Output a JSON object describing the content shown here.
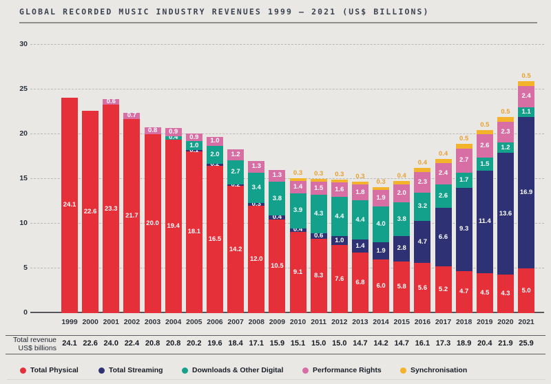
{
  "title": "GLOBAL RECORDED MUSIC INDUSTRY REVENUES 1999 – 2021 (US$ BILLIONS)",
  "colors": {
    "physical": "#e5303a",
    "streaming": "#2e3274",
    "downloads": "#14a18b",
    "performance": "#d76fa4",
    "sync": "#f3b32b",
    "sync_label_text": "#e9a02e",
    "background": "#e9e8e5"
  },
  "y_axis": {
    "ticks": [
      0,
      5,
      10,
      15,
      20,
      25,
      30
    ],
    "max": 30
  },
  "chart_data": {
    "type": "bar",
    "stacked": true,
    "title": "GLOBAL RECORDED MUSIC INDUSTRY REVENUES 1999 – 2021 (US$ BILLIONS)",
    "ylabel": "US$ billions",
    "ylim": [
      0,
      30
    ],
    "grid": true,
    "legend_position": "bottom",
    "categories": [
      "1999",
      "2000",
      "2001",
      "2002",
      "2003",
      "2004",
      "2005",
      "2006",
      "2007",
      "2008",
      "2009",
      "2010",
      "2011",
      "2012",
      "2013",
      "2014",
      "2015",
      "2016",
      "2017",
      "2018",
      "2019",
      "2020",
      "2021"
    ],
    "series": [
      {
        "name": "Total Physical",
        "color_key": "physical",
        "values": [
          24.1,
          22.6,
          23.3,
          21.7,
          20.0,
          19.4,
          18.1,
          16.5,
          14.2,
          12.0,
          10.5,
          9.1,
          8.3,
          7.6,
          6.8,
          6.0,
          5.8,
          5.6,
          5.2,
          4.7,
          4.5,
          4.3,
          5.0
        ]
      },
      {
        "name": "Total Streaming",
        "color_key": "streaming",
        "values": [
          null,
          null,
          null,
          null,
          null,
          null,
          0.1,
          0.2,
          0.2,
          0.3,
          0.4,
          0.4,
          0.6,
          1.0,
          1.4,
          1.9,
          2.8,
          4.7,
          6.6,
          9.3,
          11.4,
          13.6,
          16.9
        ]
      },
      {
        "name": "Downloads & Other Digital",
        "color_key": "downloads",
        "values": [
          null,
          null,
          null,
          null,
          null,
          0.4,
          1.0,
          2.0,
          2.7,
          3.4,
          3.8,
          3.9,
          4.3,
          4.4,
          4.4,
          4.0,
          3.8,
          3.2,
          2.6,
          1.7,
          1.5,
          1.2,
          1.1
        ]
      },
      {
        "name": "Performance Rights",
        "color_key": "performance",
        "values": [
          null,
          null,
          0.6,
          0.7,
          0.8,
          0.9,
          0.9,
          1.0,
          1.2,
          1.3,
          1.3,
          1.4,
          1.5,
          1.6,
          1.8,
          1.9,
          2.0,
          2.3,
          2.4,
          2.7,
          2.6,
          2.3,
          2.4
        ]
      },
      {
        "name": "Synchronisation",
        "color_key": "sync",
        "values": [
          null,
          null,
          null,
          null,
          null,
          null,
          null,
          null,
          null,
          null,
          null,
          0.3,
          0.3,
          0.3,
          0.3,
          0.3,
          0.4,
          0.4,
          0.4,
          0.5,
          0.5,
          0.5,
          0.5
        ]
      }
    ]
  },
  "totals": {
    "label_line1": "Total revenue",
    "label_line2": "US$ billions",
    "values": [
      24.1,
      22.6,
      24.0,
      22.4,
      20.8,
      20.8,
      20.2,
      19.6,
      18.4,
      17.1,
      15.9,
      15.1,
      15.0,
      15.0,
      14.7,
      14.2,
      14.7,
      16.1,
      17.3,
      18.9,
      20.4,
      21.9,
      25.9
    ]
  },
  "legend": [
    {
      "label": "Total Physical",
      "color_key": "physical"
    },
    {
      "label": "Total Streaming",
      "color_key": "streaming"
    },
    {
      "label": "Downloads & Other Digital",
      "color_key": "downloads"
    },
    {
      "label": "Performance Rights",
      "color_key": "performance"
    },
    {
      "label": "Synchronisation",
      "color_key": "sync"
    }
  ]
}
